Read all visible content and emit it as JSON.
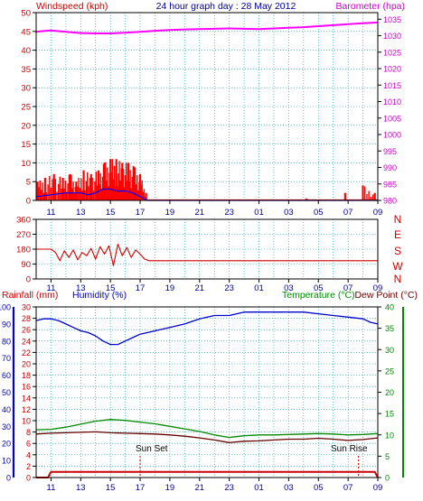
{
  "colors": {
    "wind": "#ff0000",
    "gust_mean": "#0000ff",
    "barometer": "#ff00ff",
    "wind_dir": "#cc0000",
    "grid": "#009999",
    "humidity": "#0000cc",
    "temperature": "#008800",
    "dew_point": "#660000",
    "rain": "#cc0000",
    "axis": "#000000",
    "header_blue": "#000099",
    "left_label": "#cc0000",
    "right_magenta": "#cc00cc",
    "compass": "#cc0000"
  },
  "top_chart": {
    "title": "24 hour graph day : 28 May 2012",
    "left_label": "Windspeed (kph)",
    "right_label": "Barometer (hpa)",
    "left_ticks": [
      "0",
      "5",
      "10",
      "15",
      "20",
      "25",
      "30",
      "35",
      "40",
      "45",
      "50"
    ],
    "right_ticks": [
      "980",
      "985",
      "990",
      "995",
      "1000",
      "1005",
      "1010",
      "1015",
      "1020",
      "1025",
      "1030",
      "1035"
    ],
    "x_ticks": [
      "11",
      "13",
      "15",
      "17",
      "19",
      "21",
      "23",
      "01",
      "03",
      "05",
      "07",
      "09"
    ]
  },
  "dir_chart": {
    "left_ticks": [
      "0",
      "90",
      "180",
      "270",
      "360"
    ],
    "compass": [
      "N",
      "W",
      "S",
      "E",
      "N"
    ],
    "x_ticks": [
      "11",
      "13",
      "15",
      "17",
      "19",
      "21",
      "23",
      "01",
      "03",
      "05",
      "07",
      "09"
    ]
  },
  "bottom_chart": {
    "rain_label": "Rainfall (mm)",
    "humidity_label": "Humidity (%)",
    "temp_label": "Temperature (°C)",
    "dew_label": "Dew Point (°C)",
    "humidity_ticks": [
      "0",
      "10",
      "20",
      "30",
      "40",
      "50",
      "60",
      "70",
      "80",
      "90",
      "100"
    ],
    "rain_ticks": [
      "0",
      "2",
      "4",
      "6",
      "8",
      "10",
      "12",
      "14",
      "16",
      "18",
      "20",
      "22",
      "24",
      "26",
      "28",
      "30"
    ],
    "temp_ticks": [
      "0",
      "5",
      "10",
      "15",
      "20",
      "25",
      "30",
      "35",
      "40"
    ],
    "x_ticks": [
      "11",
      "13",
      "15",
      "17",
      "19",
      "21",
      "23",
      "01",
      "03",
      "05",
      "07",
      "09"
    ],
    "sunset": "Sun Set",
    "sunrise": "Sun Rise"
  },
  "chart_data": [
    {
      "type": "line",
      "title": "24 hour graph day : 28 May 2012",
      "xlabel": "",
      "ylabel": "Windspeed (kph)",
      "y2label": "Barometer (hpa)",
      "x_unit": "hour",
      "ylim": [
        0,
        50
      ],
      "y2lim": [
        980,
        1037
      ],
      "grid": true,
      "series": [
        {
          "name": "Windspeed (kph)",
          "axis": "left",
          "style": "spikes",
          "x": [
            10.1,
            10.6,
            11.2,
            11.8,
            12.3,
            12.7,
            13.2,
            13.7,
            14.2,
            14.6,
            15.0,
            15.4,
            15.8,
            16.2,
            16.6,
            17.0,
            17.4,
            28.2,
            30.8,
            32.0,
            32.8
          ],
          "y": [
            5,
            6,
            7,
            6,
            7,
            5,
            8,
            7,
            8,
            10,
            11,
            11,
            10,
            10,
            9,
            7,
            2,
            0.5,
            2,
            4,
            2
          ]
        },
        {
          "name": "Mean windspeed",
          "axis": "left",
          "style": "line",
          "x": [
            10.0,
            11.0,
            12.0,
            13.0,
            13.5,
            14.0,
            14.5,
            15.0,
            15.5,
            16.0,
            16.5,
            17.0,
            17.5,
            18.0,
            33.0
          ],
          "y": [
            1,
            1.5,
            2,
            2,
            1.5,
            2,
            3,
            3,
            2.5,
            2.5,
            2,
            1,
            0,
            0,
            0
          ]
        },
        {
          "name": "Barometer (hpa)",
          "axis": "right",
          "style": "line",
          "x": [
            10.0,
            10.5,
            11.0,
            12.0,
            13.0,
            14.0,
            15.0,
            16.0,
            17.0,
            18.0,
            19.0,
            20.0,
            21.0,
            22.0,
            23.0,
            24.0,
            25.0,
            26.0,
            27.0,
            28.0,
            29.0,
            30.0,
            31.0,
            32.0,
            33.0
          ],
          "y": [
            1031.2,
            1031.4,
            1031.6,
            1031.2,
            1030.8,
            1030.7,
            1030.7,
            1030.9,
            1031.2,
            1031.5,
            1031.7,
            1031.9,
            1032.0,
            1032.1,
            1032.2,
            1032.1,
            1032.0,
            1032.2,
            1032.4,
            1032.6,
            1032.9,
            1033.2,
            1033.5,
            1033.8,
            1034.0
          ]
        }
      ]
    },
    {
      "type": "line",
      "xlabel": "",
      "ylabel": "",
      "x_unit": "hour",
      "ylim": [
        0,
        360
      ],
      "grid": true,
      "series": [
        {
          "name": "Wind direction (deg)",
          "axis": "left",
          "style": "line",
          "x": [
            10.0,
            11.0,
            11.3,
            11.6,
            11.9,
            12.2,
            12.5,
            12.8,
            13.1,
            13.4,
            13.7,
            14.0,
            14.3,
            14.6,
            14.9,
            15.2,
            15.5,
            15.8,
            16.1,
            16.4,
            16.7,
            17.0,
            17.3,
            17.6,
            18.0,
            33.0
          ],
          "y": [
            180,
            180,
            160,
            110,
            170,
            130,
            175,
            115,
            160,
            140,
            185,
            120,
            195,
            150,
            200,
            80,
            210,
            140,
            190,
            130,
            175,
            150,
            120,
            110,
            110,
            110
          ]
        }
      ]
    },
    {
      "type": "line",
      "xlabel": "",
      "ylabel": "Humidity (%)",
      "y2label": "Temperature (°C) / Dew Point (°C)",
      "x_unit": "hour",
      "ylim": [
        0,
        100
      ],
      "y2lim": [
        0,
        40
      ],
      "grid": true,
      "series": [
        {
          "name": "Humidity (%)",
          "axis": "humidity",
          "style": "line",
          "x": [
            10.0,
            10.5,
            11.0,
            11.5,
            12.0,
            12.5,
            13.0,
            13.5,
            14.0,
            14.5,
            15.0,
            15.5,
            16.0,
            16.5,
            17.0,
            17.5,
            18.0,
            19.0,
            20.0,
            21.0,
            22.0,
            23.0,
            24.0,
            25.0,
            26.0,
            27.0,
            28.0,
            29.0,
            30.0,
            31.0,
            32.0,
            32.5,
            33.0
          ],
          "y": [
            92,
            93,
            93,
            92,
            90,
            88,
            86,
            85,
            83,
            80,
            78,
            78,
            80,
            82,
            84,
            85,
            86,
            88,
            90,
            93,
            95,
            95,
            97,
            97,
            97,
            97,
            97,
            96,
            95,
            94,
            93,
            91,
            90
          ]
        },
        {
          "name": "Temperature (°C)",
          "axis": "temperature",
          "style": "line",
          "x": [
            10.0,
            11.0,
            12.0,
            13.0,
            14.0,
            15.0,
            16.0,
            17.0,
            18.0,
            19.0,
            20.0,
            21.0,
            22.0,
            23.0,
            24.0,
            25.0,
            26.0,
            27.0,
            28.0,
            29.0,
            30.0,
            31.0,
            32.0,
            33.0
          ],
          "y": [
            11.2,
            11.3,
            11.8,
            12.5,
            13.2,
            13.6,
            13.4,
            13.0,
            12.6,
            12.0,
            11.4,
            10.8,
            10.0,
            9.4,
            9.8,
            10.0,
            10.0,
            10.1,
            10.2,
            10.3,
            10.2,
            10.0,
            10.1,
            10.3
          ]
        },
        {
          "name": "Dew Point (°C)",
          "axis": "temperature",
          "style": "line",
          "x": [
            10.0,
            11.0,
            12.0,
            13.0,
            14.0,
            15.0,
            16.0,
            17.0,
            18.0,
            19.0,
            20.0,
            21.0,
            22.0,
            23.0,
            24.0,
            25.0,
            26.0,
            27.0,
            28.0,
            29.0,
            30.0,
            31.0,
            32.0,
            33.0
          ],
          "y": [
            10.2,
            10.4,
            10.5,
            10.6,
            10.7,
            10.5,
            10.4,
            10.3,
            10.2,
            10.0,
            9.7,
            9.3,
            8.8,
            8.2,
            8.5,
            8.6,
            8.8,
            9.0,
            9.0,
            9.2,
            9.0,
            8.7,
            8.9,
            9.3
          ]
        },
        {
          "name": "Rainfall (mm)",
          "axis": "rain",
          "style": "line",
          "x": [
            10.0,
            10.8,
            11.0,
            32.8,
            33.0
          ],
          "y": [
            0,
            0,
            1,
            1,
            0
          ]
        }
      ]
    }
  ]
}
